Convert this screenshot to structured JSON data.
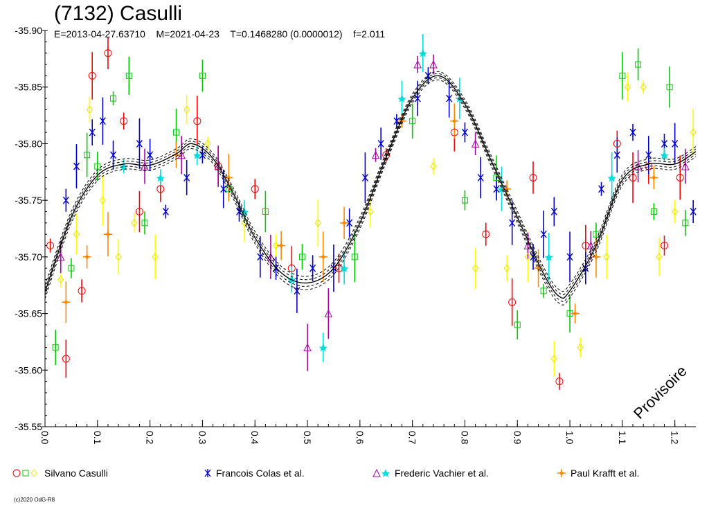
{
  "page": {
    "title": "(7132) Casulli",
    "subtitle": "E=2013-04-27.63710    M=2021-04-23    T=0.1468280 (0.0000012)    f=2.011",
    "copyright": "(c)2020 OdG-R8",
    "watermark": "Provisoire"
  },
  "chart_data": {
    "type": "scatter",
    "title": "(7132) Casulli",
    "xlabel": "",
    "ylabel": "",
    "xlim": [
      0,
      1.24
    ],
    "ylim": [
      -35.55,
      -35.9
    ],
    "y_axis_inverted": true,
    "x_ticks": [
      "0.0",
      "0.1",
      "0.2",
      "0.3",
      "0.4",
      "0.5",
      "0.6",
      "0.7",
      "0.8",
      "0.9",
      "1.0",
      "1.1",
      "1.2"
    ],
    "y_ticks": [
      "-35.55",
      "-35.60",
      "-35.65",
      "-35.70",
      "-35.75",
      "-35.80",
      "-35.85",
      "-35.90"
    ],
    "grid": false,
    "fit_curve": {
      "description_markers": "solid model curve with dashed uncertainty envelope",
      "mean": -35.765,
      "envelope_offsets": [
        -0.012,
        -0.006,
        0.006,
        0.012
      ],
      "points": [
        [
          0.0,
          -35.669
        ],
        [
          0.05,
          -35.735
        ],
        [
          0.1,
          -35.772
        ],
        [
          0.15,
          -35.782
        ],
        [
          0.2,
          -35.781
        ],
        [
          0.25,
          -35.791
        ],
        [
          0.28,
          -35.8
        ],
        [
          0.32,
          -35.787
        ],
        [
          0.36,
          -35.755
        ],
        [
          0.4,
          -35.717
        ],
        [
          0.45,
          -35.686
        ],
        [
          0.5,
          -35.677
        ],
        [
          0.55,
          -35.69
        ],
        [
          0.6,
          -35.73
        ],
        [
          0.65,
          -35.788
        ],
        [
          0.7,
          -35.84
        ],
        [
          0.75,
          -35.86
        ],
        [
          0.8,
          -35.835
        ],
        [
          0.85,
          -35.785
        ],
        [
          0.9,
          -35.735
        ],
        [
          0.95,
          -35.685
        ],
        [
          0.98,
          -35.665
        ],
        [
          1.0,
          -35.67
        ],
        [
          1.05,
          -35.71
        ],
        [
          1.1,
          -35.768
        ],
        [
          1.15,
          -35.782
        ],
        [
          1.2,
          -35.782
        ],
        [
          1.24,
          -35.793
        ]
      ]
    },
    "series": [
      {
        "name": "Silvano Casulli",
        "marker": "circle",
        "colors": [
          "#ff0000",
          "#00cc00",
          "#ffff00"
        ],
        "points": [
          [
            0.01,
            -35.71
          ],
          [
            0.02,
            -35.62
          ],
          [
            0.03,
            -35.68
          ],
          [
            0.04,
            -35.61
          ],
          [
            0.05,
            -35.69
          ],
          [
            0.06,
            -35.72
          ],
          [
            0.07,
            -35.67
          ],
          [
            0.08,
            -35.79
          ],
          [
            0.085,
            -35.83
          ],
          [
            0.09,
            -35.86
          ],
          [
            0.1,
            -35.78
          ],
          [
            0.11,
            -35.75
          ],
          [
            0.12,
            -35.88
          ],
          [
            0.13,
            -35.84
          ],
          [
            0.14,
            -35.7
          ],
          [
            0.15,
            -35.82
          ],
          [
            0.16,
            -35.86
          ],
          [
            0.17,
            -35.73
          ],
          [
            0.18,
            -35.74
          ],
          [
            0.19,
            -35.73
          ],
          [
            0.21,
            -35.7
          ],
          [
            0.22,
            -35.76
          ],
          [
            0.25,
            -35.81
          ],
          [
            0.27,
            -35.83
          ],
          [
            0.29,
            -35.82
          ],
          [
            0.3,
            -35.86
          ],
          [
            0.31,
            -35.8
          ],
          [
            0.33,
            -35.78
          ],
          [
            0.35,
            -35.76
          ],
          [
            0.38,
            -35.73
          ],
          [
            0.4,
            -35.76
          ],
          [
            0.42,
            -35.74
          ],
          [
            0.44,
            -35.71
          ],
          [
            0.47,
            -35.69
          ],
          [
            0.49,
            -35.7
          ],
          [
            0.52,
            -35.73
          ],
          [
            0.56,
            -35.69
          ],
          [
            0.59,
            -35.7
          ],
          [
            0.62,
            -35.74
          ],
          [
            0.65,
            -35.79
          ],
          [
            0.7,
            -35.82
          ],
          [
            0.74,
            -35.78
          ],
          [
            0.78,
            -35.81
          ],
          [
            0.8,
            -35.75
          ],
          [
            0.82,
            -35.69
          ],
          [
            0.84,
            -35.72
          ],
          [
            0.86,
            -35.77
          ],
          [
            0.88,
            -35.69
          ],
          [
            0.89,
            -35.66
          ],
          [
            0.9,
            -35.64
          ],
          [
            0.92,
            -35.7
          ],
          [
            0.93,
            -35.77
          ],
          [
            0.95,
            -35.67
          ],
          [
            0.97,
            -35.61
          ],
          [
            0.98,
            -35.59
          ],
          [
            1.0,
            -35.65
          ],
          [
            1.02,
            -35.62
          ],
          [
            1.03,
            -35.71
          ],
          [
            1.05,
            -35.72
          ],
          [
            1.07,
            -35.7
          ],
          [
            1.09,
            -35.8
          ],
          [
            1.1,
            -35.86
          ],
          [
            1.11,
            -35.85
          ],
          [
            1.12,
            -35.77
          ],
          [
            1.13,
            -35.87
          ],
          [
            1.14,
            -35.85
          ],
          [
            1.15,
            -35.78
          ],
          [
            1.16,
            -35.74
          ],
          [
            1.17,
            -35.7
          ],
          [
            1.18,
            -35.71
          ],
          [
            1.19,
            -35.85
          ],
          [
            1.2,
            -35.74
          ],
          [
            1.21,
            -35.77
          ],
          [
            1.22,
            -35.73
          ],
          [
            1.235,
            -35.81
          ]
        ]
      },
      {
        "name": "Francois Colas et al.",
        "marker": "star",
        "colors": [
          "#0000cc"
        ],
        "points": [
          [
            0.04,
            -35.75
          ],
          [
            0.06,
            -35.78
          ],
          [
            0.09,
            -35.81
          ],
          [
            0.11,
            -35.82
          ],
          [
            0.13,
            -35.79
          ],
          [
            0.18,
            -35.8
          ],
          [
            0.2,
            -35.79
          ],
          [
            0.23,
            -35.74
          ],
          [
            0.27,
            -35.77
          ],
          [
            0.3,
            -35.79
          ],
          [
            0.34,
            -35.76
          ],
          [
            0.37,
            -35.74
          ],
          [
            0.41,
            -35.7
          ],
          [
            0.44,
            -35.69
          ],
          [
            0.48,
            -35.67
          ],
          [
            0.51,
            -35.69
          ],
          [
            0.55,
            -35.69
          ],
          [
            0.58,
            -35.73
          ],
          [
            0.61,
            -35.77
          ],
          [
            0.64,
            -35.8
          ],
          [
            0.67,
            -35.82
          ],
          [
            0.71,
            -35.84
          ],
          [
            0.73,
            -35.86
          ],
          [
            0.77,
            -35.84
          ],
          [
            0.8,
            -35.81
          ],
          [
            0.83,
            -35.77
          ],
          [
            0.86,
            -35.76
          ],
          [
            0.89,
            -35.73
          ],
          [
            0.93,
            -35.7
          ],
          [
            0.95,
            -35.72
          ],
          [
            0.97,
            -35.74
          ],
          [
            1.0,
            -35.7
          ],
          [
            1.03,
            -35.69
          ],
          [
            1.06,
            -35.76
          ],
          [
            1.09,
            -35.79
          ],
          [
            1.12,
            -35.81
          ],
          [
            1.15,
            -35.79
          ],
          [
            1.18,
            -35.8
          ],
          [
            1.2,
            -35.8
          ],
          [
            1.235,
            -35.74
          ]
        ]
      },
      {
        "name": "Frederic Vachier et al.",
        "marker": "triangle",
        "colors": [
          "#aa00aa",
          "#00dddd"
        ],
        "points": [
          [
            0.03,
            -35.7
          ],
          [
            0.15,
            -35.78
          ],
          [
            0.19,
            -35.78
          ],
          [
            0.22,
            -35.77
          ],
          [
            0.26,
            -35.79
          ],
          [
            0.29,
            -35.79
          ],
          [
            0.33,
            -35.78
          ],
          [
            0.38,
            -35.74
          ],
          [
            0.43,
            -35.7
          ],
          [
            0.47,
            -35.68
          ],
          [
            0.5,
            -35.62
          ],
          [
            0.53,
            -35.62
          ],
          [
            0.54,
            -35.65
          ],
          [
            0.57,
            -35.69
          ],
          [
            0.63,
            -35.79
          ],
          [
            0.68,
            -35.84
          ],
          [
            0.71,
            -35.87
          ],
          [
            0.72,
            -35.88
          ],
          [
            0.74,
            -35.87
          ],
          [
            0.79,
            -35.84
          ],
          [
            0.82,
            -35.8
          ],
          [
            0.87,
            -35.76
          ],
          [
            0.92,
            -35.71
          ],
          [
            0.96,
            -35.7
          ],
          [
            1.04,
            -35.71
          ],
          [
            1.08,
            -35.77
          ],
          [
            1.13,
            -35.78
          ],
          [
            1.18,
            -35.79
          ],
          [
            1.22,
            -35.78
          ]
        ]
      },
      {
        "name": "Paul Krafft et al.",
        "marker": "cross",
        "colors": [
          "#ff8800"
        ],
        "points": [
          [
            0.04,
            -35.66
          ],
          [
            0.08,
            -35.7
          ],
          [
            0.12,
            -35.72
          ],
          [
            0.25,
            -35.79
          ],
          [
            0.35,
            -35.77
          ],
          [
            0.45,
            -35.71
          ],
          [
            0.53,
            -35.7
          ],
          [
            0.57,
            -35.73
          ],
          [
            0.68,
            -35.82
          ],
          [
            0.78,
            -35.82
          ],
          [
            0.88,
            -35.76
          ],
          [
            0.94,
            -35.69
          ],
          [
            1.01,
            -35.65
          ],
          [
            1.05,
            -35.7
          ],
          [
            1.16,
            -35.77
          ]
        ]
      }
    ]
  },
  "legend": [
    {
      "label": "Silvano Casulli",
      "marker": "circle-square-diamond"
    },
    {
      "label": "Francois Colas et al.",
      "marker": "star"
    },
    {
      "label": "Frederic Vachier et al.",
      "marker": "triangle-star"
    },
    {
      "label": "Paul Krafft et al.",
      "marker": "cross"
    }
  ]
}
